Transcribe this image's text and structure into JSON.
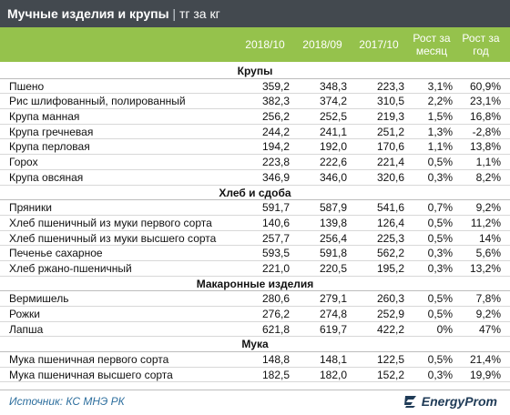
{
  "title": {
    "main": "Мучные изделия и крупы",
    "separator": "|",
    "unit": "тг за кг"
  },
  "columns": [
    {
      "label": "2018/10"
    },
    {
      "label": "2018/09"
    },
    {
      "label": "2017/10"
    },
    {
      "label": "Рост за месяц"
    },
    {
      "label": "Рост за год"
    }
  ],
  "sections": [
    {
      "name": "Крупы",
      "rows": [
        {
          "name": "Пшено",
          "v1": "359,2",
          "v2": "348,3",
          "v3": "223,3",
          "m": "3,1%",
          "y": "60,9%"
        },
        {
          "name": "Рис шлифованный, полированный",
          "v1": "382,3",
          "v2": "374,2",
          "v3": "310,5",
          "m": "2,2%",
          "y": "23,1%"
        },
        {
          "name": "Крупа манная",
          "v1": "256,2",
          "v2": "252,5",
          "v3": "219,3",
          "m": "1,5%",
          "y": "16,8%"
        },
        {
          "name": "Крупа гречневая",
          "v1": "244,2",
          "v2": "241,1",
          "v3": "251,2",
          "m": "1,3%",
          "y": "-2,8%"
        },
        {
          "name": "Крупа перловая",
          "v1": "194,2",
          "v2": "192,0",
          "v3": "170,6",
          "m": "1,1%",
          "y": "13,8%"
        },
        {
          "name": "Горох",
          "v1": "223,8",
          "v2": "222,6",
          "v3": "221,4",
          "m": "0,5%",
          "y": "1,1%"
        },
        {
          "name": "Крупа овсяная",
          "v1": "346,9",
          "v2": "346,0",
          "v3": "320,6",
          "m": "0,3%",
          "y": "8,2%"
        }
      ]
    },
    {
      "name": "Хлеб и сдоба",
      "rows": [
        {
          "name": "Пряники",
          "v1": "591,7",
          "v2": "587,9",
          "v3": "541,6",
          "m": "0,7%",
          "y": "9,2%"
        },
        {
          "name": "Хлеб пшеничный из муки первого сорта",
          "v1": "140,6",
          "v2": "139,8",
          "v3": "126,4",
          "m": "0,5%",
          "y": "11,2%"
        },
        {
          "name": "Хлеб пшеничный из муки высшего сорта",
          "v1": "257,7",
          "v2": "256,4",
          "v3": "225,3",
          "m": "0,5%",
          "y": "14%"
        },
        {
          "name": "Печенье сахарное",
          "v1": "593,5",
          "v2": "591,8",
          "v3": "562,2",
          "m": "0,3%",
          "y": "5,6%"
        },
        {
          "name": "Хлеб ржано-пшеничный",
          "v1": "221,0",
          "v2": "220,5",
          "v3": "195,2",
          "m": "0,3%",
          "y": "13,2%"
        }
      ]
    },
    {
      "name": "Макаронные изделия",
      "rows": [
        {
          "name": "Вермишель",
          "v1": "280,6",
          "v2": "279,1",
          "v3": "260,3",
          "m": "0,5%",
          "y": "7,8%"
        },
        {
          "name": "Рожки",
          "v1": "276,2",
          "v2": "274,8",
          "v3": "252,9",
          "m": "0,5%",
          "y": "9,2%"
        },
        {
          "name": "Лапша",
          "v1": "621,8",
          "v2": "619,7",
          "v3": "422,2",
          "m": "0%",
          "y": "47%"
        }
      ]
    },
    {
      "name": "Мука",
      "rows": [
        {
          "name": "Мука пшеничная первого сорта",
          "v1": "148,8",
          "v2": "148,1",
          "v3": "122,5",
          "m": "0,5%",
          "y": "21,4%"
        },
        {
          "name": "Мука пшеничная высшего сорта",
          "v1": "182,5",
          "v2": "182,0",
          "v3": "152,2",
          "m": "0,3%",
          "y": "19,9%"
        }
      ]
    }
  ],
  "footer": {
    "source": "Источник: КС МНЭ РК",
    "logo_text": "EnergyProm",
    "logo_icon": "energyprom-logo-icon"
  },
  "colors": {
    "title_bg": "#43494f",
    "header_bg": "#95c24c",
    "source_text": "#2e6f9e"
  }
}
